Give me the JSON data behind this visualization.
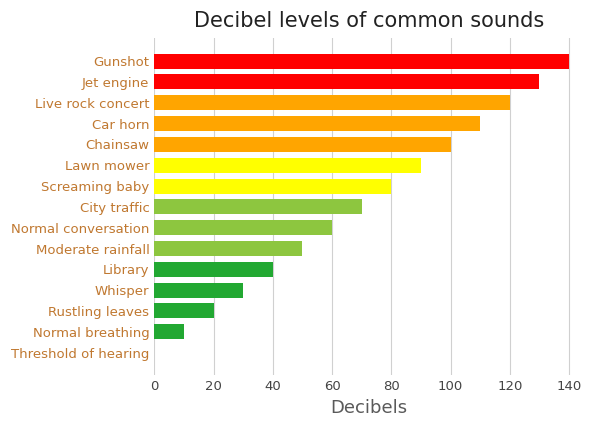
{
  "title": "Decibel levels of common sounds",
  "xlabel": "Decibels",
  "categories": [
    "Threshold of hearing",
    "Normal breathing",
    "Rustling leaves",
    "Whisper",
    "Library",
    "Moderate rainfall",
    "Normal conversation",
    "City traffic",
    "Screaming baby",
    "Lawn mower",
    "Chainsaw",
    "Car horn",
    "Live rock concert",
    "Jet engine",
    "Gunshot"
  ],
  "values": [
    0,
    10,
    20,
    30,
    40,
    50,
    60,
    70,
    80,
    90,
    100,
    110,
    120,
    130,
    140
  ],
  "colors": [
    "#c8c8c8",
    "#22a832",
    "#22a832",
    "#22a832",
    "#22a832",
    "#8dc63f",
    "#8dc63f",
    "#8dc63f",
    "#ffff00",
    "#ffff00",
    "#ffa500",
    "#ffa500",
    "#ffa500",
    "#ff0000",
    "#ff0000"
  ],
  "xlim": [
    0,
    145
  ],
  "xticks": [
    0,
    20,
    40,
    60,
    80,
    100,
    120,
    140
  ],
  "title_fontsize": 15,
  "xlabel_fontsize": 13,
  "label_fontsize": 9.5,
  "tick_fontsize": 9.5,
  "background_color": "#ffffff",
  "grid_color": "#d0d0d0",
  "ylabel_color": "#c07830",
  "xlabel_color": "#5a5a5a",
  "title_color": "#222222"
}
